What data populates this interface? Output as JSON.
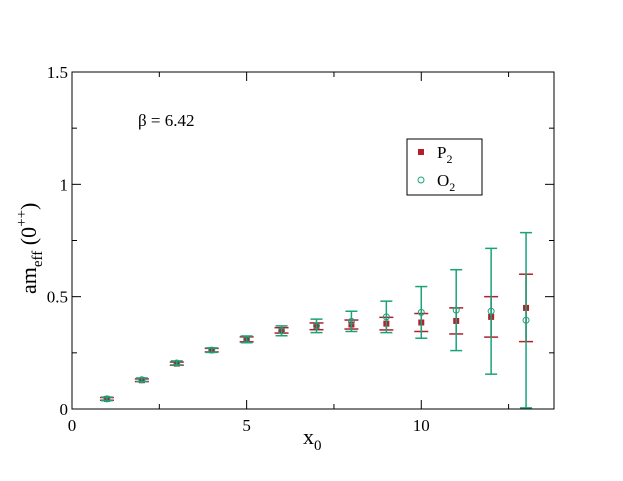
{
  "chart_data": {
    "type": "scatter",
    "title": "",
    "xlabel": {
      "main": "x",
      "sub": "0"
    },
    "ylabel": {
      "main": "am",
      "sub": "eff",
      "rest": " (0",
      "sup": "++",
      "close": ")"
    },
    "xlim": [
      0,
      13.8
    ],
    "ylim": [
      0,
      1.5
    ],
    "x_ticks": [
      0,
      5,
      10
    ],
    "y_ticks": [
      0,
      0.5,
      1,
      1.5
    ],
    "x_tick_labels": [
      "0",
      "5",
      "10"
    ],
    "y_tick_labels": [
      "0",
      "0.5",
      "1",
      "1.5"
    ],
    "grid": false,
    "legend_position": "upper-right",
    "annotation": "β = 6.42",
    "series": [
      {
        "name": {
          "main": "P",
          "sub": "2"
        },
        "marker": "square",
        "color": "#b21f2d",
        "points": [
          {
            "x": 1,
            "y": 0.045,
            "err": 0.006
          },
          {
            "x": 2,
            "y": 0.128,
            "err": 0.006
          },
          {
            "x": 3,
            "y": 0.202,
            "err": 0.007
          },
          {
            "x": 4,
            "y": 0.262,
            "err": 0.008
          },
          {
            "x": 5,
            "y": 0.31,
            "err": 0.011
          },
          {
            "x": 6,
            "y": 0.35,
            "err": 0.012
          },
          {
            "x": 7,
            "y": 0.368,
            "err": 0.015
          },
          {
            "x": 8,
            "y": 0.376,
            "err": 0.02
          },
          {
            "x": 9,
            "y": 0.38,
            "err": 0.028
          },
          {
            "x": 10,
            "y": 0.385,
            "err": 0.04
          },
          {
            "x": 11,
            "y": 0.392,
            "err": 0.058
          },
          {
            "x": 12,
            "y": 0.41,
            "err": 0.09
          },
          {
            "x": 13,
            "y": 0.45,
            "err": 0.15
          }
        ]
      },
      {
        "name": {
          "main": "O",
          "sub": "2"
        },
        "marker": "circle",
        "color": "#1aa37a",
        "points": [
          {
            "x": 1,
            "y": 0.045,
            "err": 0.008
          },
          {
            "x": 2,
            "y": 0.13,
            "err": 0.008
          },
          {
            "x": 3,
            "y": 0.205,
            "err": 0.009
          },
          {
            "x": 4,
            "y": 0.262,
            "err": 0.01
          },
          {
            "x": 5,
            "y": 0.31,
            "err": 0.015
          },
          {
            "x": 6,
            "y": 0.348,
            "err": 0.022
          },
          {
            "x": 7,
            "y": 0.37,
            "err": 0.03
          },
          {
            "x": 8,
            "y": 0.39,
            "err": 0.045
          },
          {
            "x": 9,
            "y": 0.41,
            "err": 0.07
          },
          {
            "x": 10,
            "y": 0.43,
            "err": 0.115
          },
          {
            "x": 11,
            "y": 0.44,
            "err": 0.18
          },
          {
            "x": 12,
            "y": 0.435,
            "err": 0.28
          },
          {
            "x": 13,
            "y": 0.395,
            "err": 0.39
          }
        ]
      }
    ]
  }
}
